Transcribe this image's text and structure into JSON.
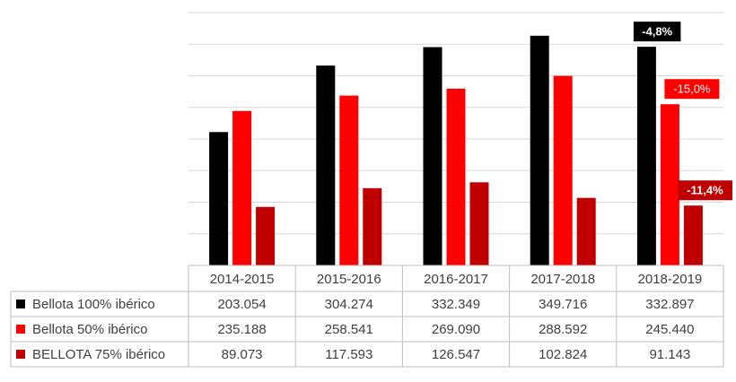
{
  "chart_data": {
    "type": "bar",
    "categories": [
      "2014-2015",
      "2015-2016",
      "2016-2017",
      "2017-2018",
      "2018-2019"
    ],
    "series": [
      {
        "name": "Bellota 100% ibérico",
        "color": "#000000",
        "values": [
          203054,
          304274,
          332349,
          349716,
          332897
        ],
        "labels": [
          "203.054",
          "304.274",
          "332.349",
          "349.716",
          "332.897"
        ]
      },
      {
        "name": "Bellota 50% ibérico",
        "color": "#ff0000",
        "values": [
          235188,
          258541,
          269090,
          288592,
          245440
        ],
        "labels": [
          "235.188",
          "258.541",
          "269.090",
          "288.592",
          "245.440"
        ]
      },
      {
        "name": "BELLOTA 75% ibérico",
        "color": "#c00000",
        "values": [
          89073,
          117593,
          126547,
          102824,
          91143
        ],
        "labels": [
          "89.073",
          "117.593",
          "126.547",
          "102.824",
          "91.143"
        ]
      }
    ],
    "ylim": [
      0,
      385000
    ],
    "grid": true,
    "legend": "data-table",
    "annotations": [
      {
        "series": 0,
        "category": 4,
        "text": "-4,8%",
        "bg": "#000000",
        "color": "#ffffff"
      },
      {
        "series": 1,
        "category": 4,
        "text": "-15,0%",
        "bg": "#ff0000",
        "color": "#ffffff"
      },
      {
        "series": 2,
        "category": 4,
        "text": "-11,4%",
        "bg": "#c00000",
        "color": "#ffffff"
      }
    ]
  }
}
